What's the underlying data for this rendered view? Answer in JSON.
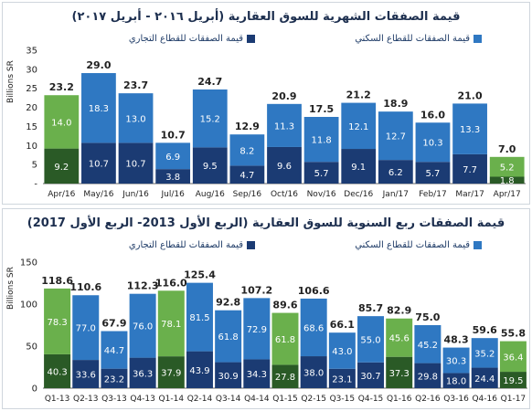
{
  "chart_data": [
    {
      "type": "bar",
      "stacked": true,
      "title": "قيمة الصفقات الشهرية للسوق العقارية (أبريل ٢٠١٦ - أبريل ٢٠١٧)",
      "ylabel": "Billions SR",
      "ylim": [
        0,
        35
      ],
      "yticks": [
        "35",
        "30",
        "25",
        "20",
        "15",
        "10",
        "5",
        "-"
      ],
      "categories": [
        "Apr/16",
        "May/16",
        "Jun/16",
        "Jul/16",
        "Aug/16",
        "Sep/16",
        "Oct/16",
        "Nov/16",
        "Dec/16",
        "Jan/17",
        "Feb/17",
        "Mar/17",
        "Apr/17"
      ],
      "series": [
        {
          "name": "قيمة الصفقات للقطاع التجاري",
          "values": [
            9.2,
            10.7,
            10.7,
            3.8,
            9.5,
            4.7,
            9.6,
            5.7,
            9.1,
            6.2,
            5.7,
            7.7,
            1.8
          ]
        },
        {
          "name": "قيمة الصفقات للقطاع السكني",
          "values": [
            14.0,
            18.3,
            13.0,
            6.9,
            15.2,
            8.2,
            11.3,
            11.8,
            12.1,
            12.7,
            10.3,
            13.3,
            5.2
          ]
        }
      ],
      "totals": [
        23.2,
        29.0,
        23.7,
        10.7,
        24.7,
        12.9,
        20.9,
        17.5,
        21.2,
        18.9,
        16.0,
        21.0,
        7.0
      ],
      "highlight": [
        0,
        12
      ],
      "colors": {
        "commercial": "#1b3b73",
        "residential": "#2f78c2",
        "commercial_hl": "#2a5a26",
        "residential_hl": "#6ab04c"
      }
    },
    {
      "type": "bar",
      "stacked": true,
      "title": "قيمة الصفقات ربع السنوية للسوق العقارية (الربع الأول 2013- الربع الأول 2017)",
      "ylabel": "Billions SR",
      "ylim": [
        0,
        150
      ],
      "yticks": [
        "150",
        "100",
        "50",
        "0"
      ],
      "categories": [
        "Q1-13",
        "Q2-13",
        "Q3-13",
        "Q4-13",
        "Q1-14",
        "Q2-14",
        "Q3-14",
        "Q4-14",
        "Q1-15",
        "Q2-15",
        "Q3-15",
        "Q4-15",
        "Q1-16",
        "Q2-16",
        "Q3-16",
        "Q4-16",
        "Q1-17"
      ],
      "series": [
        {
          "name": "قيمة الصفقات للقطاع التجاري",
          "values": [
            40.3,
            33.6,
            23.2,
            36.3,
            37.9,
            43.9,
            30.9,
            34.3,
            27.8,
            38.0,
            23.1,
            30.7,
            37.3,
            29.8,
            18.0,
            24.4,
            19.5
          ]
        },
        {
          "name": "قيمة الصفقات للقطاع السكني",
          "values": [
            78.3,
            77.0,
            44.7,
            76.0,
            78.1,
            81.5,
            61.8,
            72.9,
            61.8,
            68.6,
            43.0,
            55.0,
            45.6,
            45.2,
            30.3,
            35.2,
            36.4
          ]
        }
      ],
      "totals": [
        118.6,
        110.6,
        67.9,
        112.3,
        116.0,
        125.4,
        92.8,
        107.2,
        89.6,
        106.6,
        66.1,
        85.7,
        82.9,
        75.0,
        48.3,
        59.6,
        55.8
      ],
      "highlight": [
        0,
        4,
        8,
        12,
        16
      ],
      "colors": {
        "commercial": "#1b3b73",
        "residential": "#2f78c2",
        "commercial_hl": "#2a5a26",
        "residential_hl": "#6ab04c"
      }
    }
  ]
}
